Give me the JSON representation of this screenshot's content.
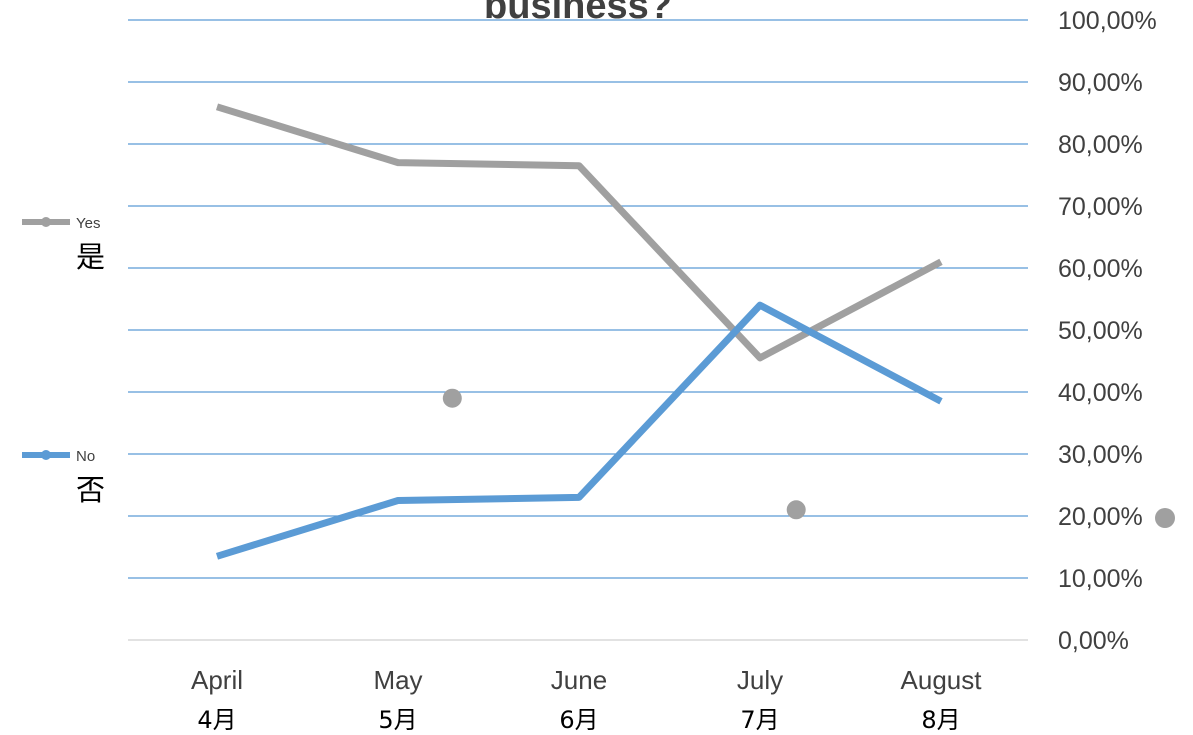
{
  "chart_data": {
    "type": "line",
    "title": "business?",
    "categories": [
      "April",
      "May",
      "June",
      "July",
      "August"
    ],
    "categories_secondary": [
      "4月",
      "5月",
      "6月",
      "7月",
      "8月"
    ],
    "ylim": [
      0,
      100
    ],
    "y_ticks": [
      "0,00%",
      "10,00%",
      "20,00%",
      "30,00%",
      "40,00%",
      "50,00%",
      "60,00%",
      "70,00%",
      "80,00%",
      "90,00%",
      "100,00%"
    ],
    "y_axis_side": "right",
    "grid": true,
    "legend_position": "left",
    "series": [
      {
        "name": "Yes",
        "label_secondary": "是",
        "values": [
          86,
          77,
          76.5,
          45.5,
          61
        ],
        "color": "#a0a0a0"
      },
      {
        "name": "No",
        "label_secondary": "否",
        "values": [
          13.5,
          22.5,
          23,
          54,
          38.5
        ],
        "color": "#5b9bd5"
      }
    ],
    "stray_markers": [
      {
        "x": 1.3,
        "y": 39,
        "color": "#a0a0a0"
      },
      {
        "x": 3.2,
        "y": 21,
        "color": "#a0a0a0"
      }
    ],
    "colors": {
      "grid": "#5b9bd5",
      "axis": "#d9d9d9",
      "text": "#404040"
    }
  }
}
